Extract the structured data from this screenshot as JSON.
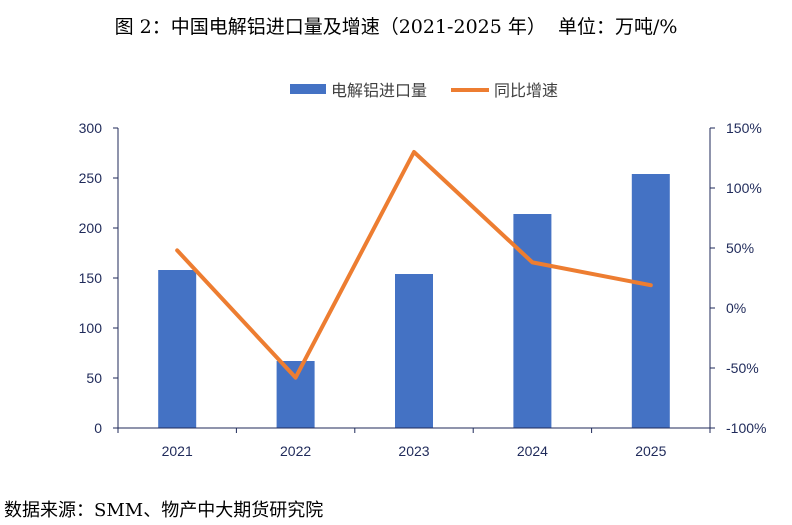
{
  "title": "图 2：中国电解铝进口量及增速（2021-2025 年）  单位：万吨/%",
  "source": "数据来源：SMM、物产中大期货研究院",
  "colors": {
    "bar": "#4472C4",
    "line": "#ED7D31",
    "axis": "#1F2A5A",
    "tick_text": "#1F2A5A"
  },
  "chart_data": {
    "type": "bar",
    "categories": [
      "2021",
      "2022",
      "2023",
      "2024",
      "2025"
    ],
    "series": [
      {
        "name": "电解铝进口量",
        "type": "bar",
        "axis": "left",
        "values": [
          158,
          67,
          154,
          214,
          254
        ]
      },
      {
        "name": "同比增速",
        "type": "line",
        "axis": "right",
        "values": [
          48,
          -58,
          130,
          38,
          19
        ]
      }
    ],
    "y_left": {
      "ylim": [
        0,
        300
      ],
      "ticks": [
        0,
        50,
        100,
        150,
        200,
        250,
        300
      ],
      "tick_labels": [
        "0",
        "50",
        "100",
        "150",
        "200",
        "250",
        "300"
      ]
    },
    "y_right": {
      "ylim": [
        -100,
        150
      ],
      "ticks": [
        -100,
        -50,
        0,
        50,
        100,
        150
      ],
      "tick_labels": [
        "-100%",
        "-50%",
        "0%",
        "50%",
        "100%",
        "150%"
      ]
    },
    "grid": false,
    "legend_position": "top-center"
  }
}
